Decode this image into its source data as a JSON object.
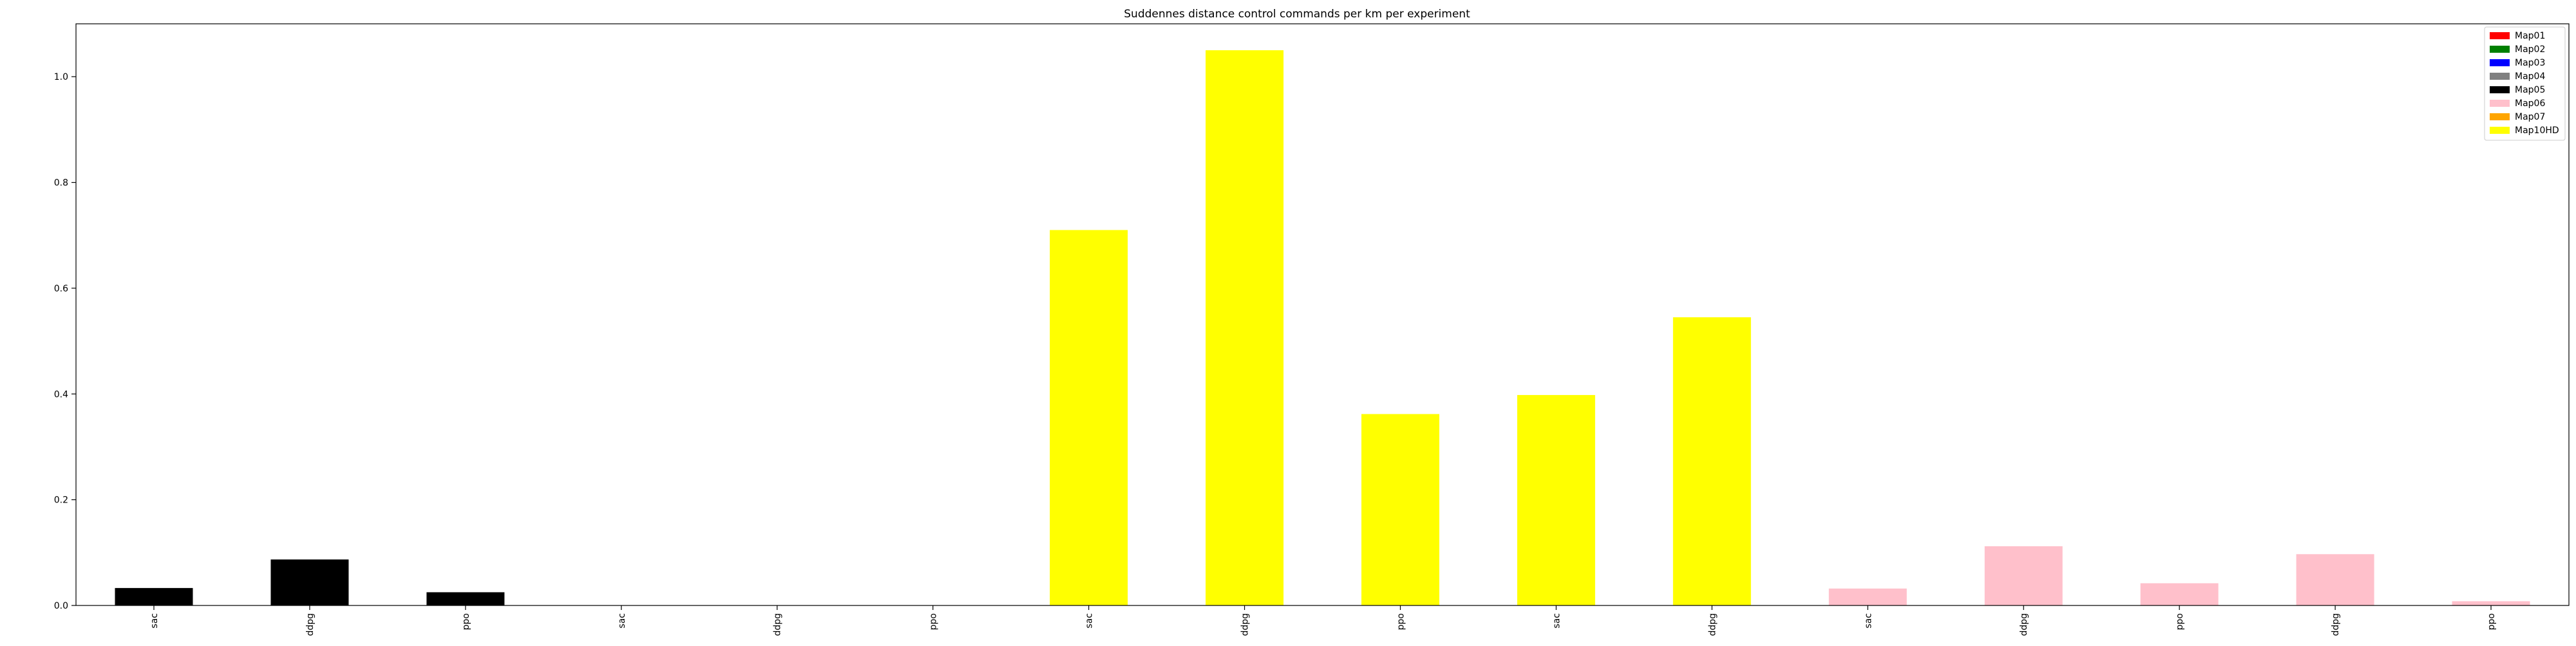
{
  "chart_data": {
    "type": "bar",
    "title": "Suddennes distance control commands per km per experiment",
    "xlabel": "",
    "ylabel": "",
    "ylim": [
      0,
      1.1
    ],
    "yticks": [
      "0.0",
      "0.2",
      "0.4",
      "0.6",
      "0.8",
      "1.0"
    ],
    "ytick_values": [
      0.0,
      0.2,
      0.4,
      0.6,
      0.8,
      1.0
    ],
    "categories": [
      "sac",
      "ddpg",
      "ppo",
      "sac",
      "ddpg",
      "ppo",
      "sac",
      "ddpg",
      "ppo",
      "sac",
      "ddpg",
      "sac",
      "ddpg",
      "ppo",
      "ddpg",
      "ppo"
    ],
    "values": [
      0.033,
      0.087,
      0.025,
      0.0,
      0.0,
      0.0,
      0.71,
      1.05,
      0.362,
      0.398,
      0.545,
      0.032,
      0.112,
      0.042,
      0.097,
      0.008
    ],
    "bar_colors": [
      "#000000",
      "#000000",
      "#000000",
      "#000000",
      "#000000",
      "#000000",
      "#ffff00",
      "#ffff00",
      "#ffff00",
      "#ffff00",
      "#ffff00",
      "#ffc0cb",
      "#ffc0cb",
      "#ffc0cb",
      "#ffc0cb",
      "#ffc0cb"
    ],
    "grid": false,
    "legend_position": "top-right",
    "legend": [
      {
        "label": "Map01",
        "color": "#ff0000"
      },
      {
        "label": "Map02",
        "color": "#008000"
      },
      {
        "label": "Map03",
        "color": "#0000ff"
      },
      {
        "label": "Map04",
        "color": "#808080"
      },
      {
        "label": "Map05",
        "color": "#000000"
      },
      {
        "label": "Map06",
        "color": "#ffc0cb"
      },
      {
        "label": "Map07",
        "color": "#ffa500"
      },
      {
        "label": "Map10HD",
        "color": "#ffff00"
      }
    ]
  }
}
